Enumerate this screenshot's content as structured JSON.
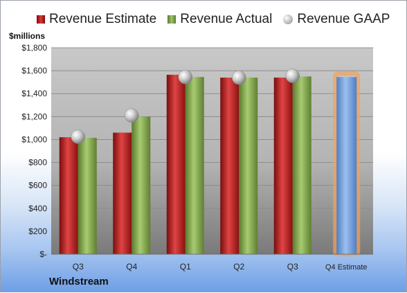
{
  "legend": {
    "estimate": "Revenue Estimate",
    "actual": "Revenue Actual",
    "gaap": "Revenue GAAP"
  },
  "units_label": "$millions",
  "company": "Windstream",
  "colors": {
    "estimate": "#c0262a",
    "actual": "#86a84e",
    "gaap_marker": "#b5b5b5",
    "forecast": "#6f9fd8",
    "forecast_glow": "#f2a35a"
  },
  "chart_data": {
    "type": "bar",
    "categories": [
      "Q3",
      "Q4",
      "Q1",
      "Q2",
      "Q3",
      "Q4 Estimate"
    ],
    "series": [
      {
        "name": "Revenue Estimate",
        "values": [
          1020,
          1060,
          1565,
          1540,
          1540,
          null
        ]
      },
      {
        "name": "Revenue Actual",
        "values": [
          1015,
          1200,
          1545,
          1540,
          1550,
          null
        ]
      },
      {
        "name": "Revenue GAAP",
        "values": [
          1025,
          1210,
          1545,
          1540,
          1555,
          null
        ]
      },
      {
        "name": "Q4 Estimate",
        "values": [
          null,
          null,
          null,
          null,
          null,
          1545
        ]
      }
    ],
    "ylim": [
      0,
      1800
    ],
    "yticks": [
      "$-",
      "$200",
      "$400",
      "$600",
      "$800",
      "$1,000",
      "$1,200",
      "$1,400",
      "$1,600",
      "$1,800"
    ],
    "ytick_values": [
      0,
      200,
      400,
      600,
      800,
      1000,
      1200,
      1400,
      1600,
      1800
    ],
    "grid": true,
    "legend_position": "top"
  }
}
